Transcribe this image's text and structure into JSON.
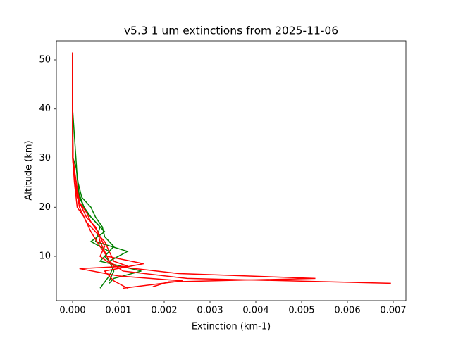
{
  "chart_data": {
    "type": "line",
    "title": "v5.3 1 um extinctions from 2025-11-06",
    "xlabel": "Extinction (km-1)",
    "ylabel": "Altitude (km)",
    "xlim": [
      -0.000354,
      0.007277
    ],
    "ylim": [
      0.97,
      53.87
    ],
    "xticks": [
      {
        "value": 0,
        "label": "0.000"
      },
      {
        "value": 0.001,
        "label": "0.001"
      },
      {
        "value": 0.002,
        "label": "0.002"
      },
      {
        "value": 0.003,
        "label": "0.003"
      },
      {
        "value": 0.004,
        "label": "0.004"
      },
      {
        "value": 0.005,
        "label": "0.005"
      },
      {
        "value": 0.006,
        "label": "0.006"
      },
      {
        "value": 0.007,
        "label": "0.007"
      }
    ],
    "yticks": [
      10,
      20,
      30,
      40,
      50
    ],
    "series": [
      {
        "color": "#008000",
        "x": [
          0,
          0,
          0,
          0,
          1e-05,
          8e-05,
          0.00012,
          0.0002,
          0.0004,
          0.0005,
          0.00065,
          0.0007,
          0.0009,
          0.0007,
          0.0009,
          0.0008,
          0.0006
        ],
        "values": [
          51.5,
          45,
          40,
          35,
          30,
          28,
          25,
          22,
          20,
          18,
          16,
          14,
          12,
          10,
          8,
          6,
          3.5
        ]
      },
      {
        "color": "#008000",
        "x": [
          0,
          0,
          1e-05,
          5e-05,
          0.00025,
          0.0004,
          0.0006,
          0.0005,
          0.0012,
          0.0008,
          0.0009,
          0.0008
        ],
        "values": [
          50,
          40,
          30,
          25,
          20,
          18,
          16,
          13,
          11,
          9,
          7,
          5
        ]
      },
      {
        "color": "#008000",
        "x": [
          0,
          0,
          8e-05,
          0.0001,
          0.00015,
          0.0003,
          0.0005,
          0.0007,
          0.0004,
          0.0008,
          0.0006,
          0.0015,
          0.0009,
          0.0008
        ],
        "values": [
          51,
          40,
          29,
          26,
          22,
          19,
          17,
          15,
          13,
          11,
          9,
          7,
          5.5,
          4.5
        ]
      },
      {
        "color": "#ff0000",
        "x": [
          0,
          0,
          0,
          0,
          1e-05,
          5e-05,
          0.0001,
          0.00015,
          0.0003,
          0.0004,
          0.00055,
          0.0006,
          0.0007,
          0.0008,
          0.0011,
          0.0025,
          0.00695
        ],
        "values": [
          51.5,
          45,
          40,
          35,
          30,
          27,
          24,
          21,
          19,
          17,
          15,
          13,
          11,
          9,
          7,
          5.5,
          4.5
        ]
      },
      {
        "color": "#ff0000",
        "x": [
          0,
          0,
          0,
          0,
          0,
          5e-05,
          0.0001,
          0.0002,
          0.0003,
          0.0005,
          0.0006,
          0.0007,
          0.0006,
          0.0009,
          0.0023,
          0.0053,
          0.0021,
          0.00175
        ],
        "values": [
          51.5,
          45,
          40,
          35,
          30,
          25,
          22,
          20,
          18,
          16,
          14,
          12,
          10,
          8,
          6.5,
          5.5,
          4.8,
          3.8
        ]
      },
      {
        "color": "#ff0000",
        "x": [
          0,
          0,
          1e-05,
          6e-05,
          0.00015,
          0.0003,
          0.0005,
          0.0007,
          0.0008,
          0.0009,
          0.0012,
          0.00015,
          0.001,
          0.0024,
          0.0011
        ],
        "values": [
          51.5,
          40,
          30,
          25,
          20,
          17,
          15,
          13,
          11,
          9,
          8,
          7.5,
          6,
          5,
          3.5
        ]
      },
      {
        "color": "#ff0000",
        "x": [
          0,
          0,
          0,
          4e-05,
          0.0001,
          0.00025,
          0.0004,
          0.0006,
          0.00075,
          0.00155,
          0.0007,
          0.0009,
          0.0012
        ],
        "values": [
          50,
          40,
          30,
          25,
          20,
          18,
          15,
          12,
          10,
          8.5,
          7,
          5,
          3.5
        ]
      }
    ]
  }
}
